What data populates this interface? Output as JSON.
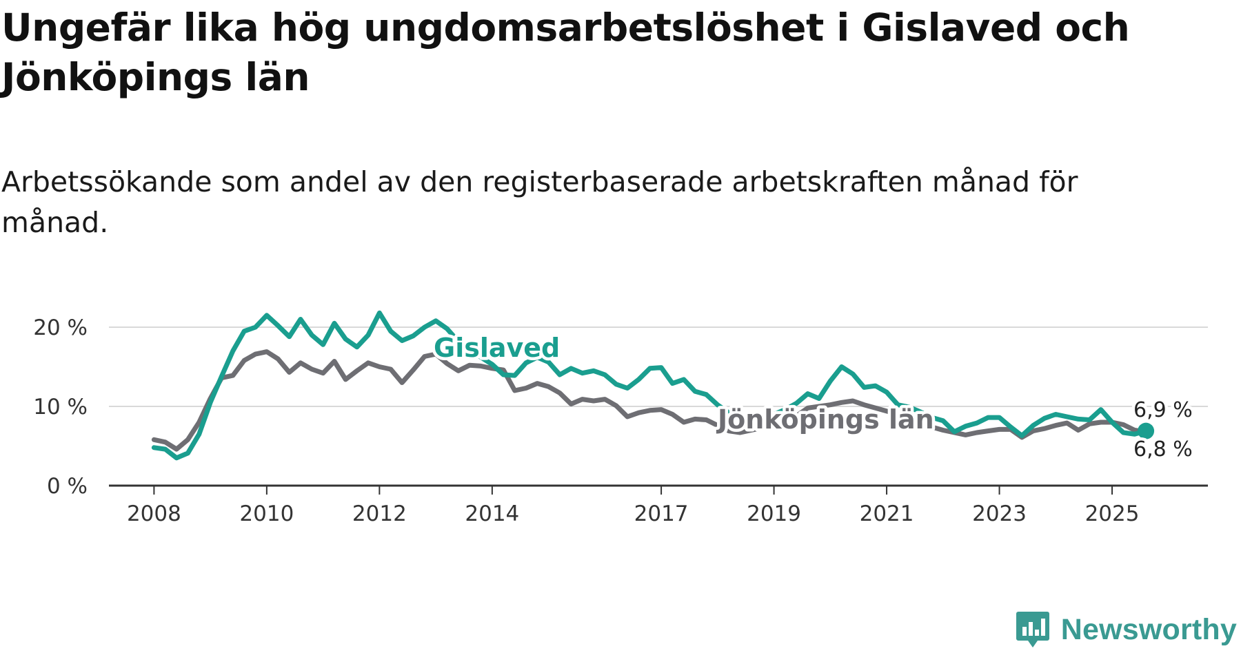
{
  "title": "Ungefär lika hög ungdomsarbetslöshet i Gislaved och Jönköpings län",
  "subtitle": "Arbetssökande som andel av den registerbaserade arbetskraften månad för månad.",
  "brand": "Newsworthy",
  "colors": {
    "gislaved": "#1a9e8f",
    "jonkoping": "#6e6e73",
    "grid": "#d9d9d9",
    "axis": "#333333",
    "brand": "#3a9a92"
  },
  "chart_data": {
    "type": "line",
    "title": "Ungefär lika hög ungdomsarbetslöshet i Gislaved och Jönköpings län",
    "subtitle": "Arbetssökande som andel av den registerbaserade arbetskraften månad för månad.",
    "xlabel": "",
    "ylabel": "",
    "ylim": [
      0,
      20
    ],
    "xlim": [
      2007.2,
      2026.7
    ],
    "yticks": [
      0,
      10,
      20
    ],
    "ytick_labels": [
      "0 %",
      "10 %",
      "20 %"
    ],
    "xticks": [
      2008,
      2010,
      2012,
      2014,
      2017,
      2019,
      2021,
      2023,
      2025
    ],
    "xtick_labels": [
      "2008",
      "2010",
      "2012",
      "2014",
      "2017",
      "2019",
      "2021",
      "2023",
      "2025"
    ],
    "grid": true,
    "series": [
      {
        "name": "Jönköpings län",
        "label": "Jönköpings län",
        "end_label": "6,8 %",
        "x": [
          2008.0,
          2008.2,
          2008.4,
          2008.6,
          2008.8,
          2009.0,
          2009.2,
          2009.4,
          2009.6,
          2009.8,
          2010.0,
          2010.2,
          2010.4,
          2010.6,
          2010.8,
          2011.0,
          2011.2,
          2011.4,
          2011.6,
          2011.8,
          2012.0,
          2012.2,
          2012.4,
          2012.6,
          2012.8,
          2013.0,
          2013.2,
          2013.4,
          2013.6,
          2013.8,
          2014.0,
          2014.2,
          2014.4,
          2014.6,
          2014.8,
          2015.0,
          2015.2,
          2015.4,
          2015.6,
          2015.8,
          2016.0,
          2016.2,
          2016.4,
          2016.6,
          2016.8,
          2017.0,
          2017.2,
          2017.4,
          2017.6,
          2017.8,
          2018.0,
          2018.2,
          2018.4,
          2018.6,
          2018.8,
          2019.0,
          2019.2,
          2019.4,
          2019.6,
          2019.8,
          2020.0,
          2020.2,
          2020.4,
          2020.6,
          2020.8,
          2021.0,
          2021.2,
          2021.4,
          2021.6,
          2021.8,
          2022.0,
          2022.2,
          2022.4,
          2022.6,
          2022.8,
          2023.0,
          2023.2,
          2023.4,
          2023.6,
          2023.8,
          2024.0,
          2024.2,
          2024.4,
          2024.6,
          2024.8,
          2025.0,
          2025.2,
          2025.4,
          2025.6
        ],
        "values": [
          5.8,
          5.5,
          4.6,
          5.8,
          8.0,
          11.0,
          13.6,
          13.9,
          15.8,
          16.6,
          16.9,
          16.0,
          14.3,
          15.5,
          14.7,
          14.2,
          15.7,
          13.4,
          14.5,
          15.5,
          15.0,
          14.7,
          13.0,
          14.6,
          16.3,
          16.6,
          15.4,
          14.5,
          15.2,
          15.1,
          14.8,
          14.6,
          12.0,
          12.3,
          12.9,
          12.5,
          11.7,
          10.3,
          10.9,
          10.7,
          10.9,
          10.1,
          8.7,
          9.2,
          9.5,
          9.6,
          9.0,
          8.0,
          8.4,
          8.3,
          7.6,
          6.9,
          6.7,
          7.0,
          7.3,
          7.4,
          7.8,
          8.8,
          9.8,
          10.0,
          10.2,
          10.5,
          10.7,
          10.2,
          9.8,
          9.4,
          9.0,
          8.4,
          7.8,
          7.4,
          7.0,
          6.7,
          6.4,
          6.7,
          6.9,
          7.1,
          7.1,
          6.1,
          6.9,
          7.2,
          7.6,
          7.9,
          7.0,
          7.8,
          8.0,
          8.0,
          7.7,
          7.0,
          6.8
        ]
      },
      {
        "name": "Gislaved",
        "label": "Gislaved",
        "end_label": "6,9 %",
        "x": [
          2008.0,
          2008.2,
          2008.4,
          2008.6,
          2008.8,
          2009.0,
          2009.2,
          2009.4,
          2009.6,
          2009.8,
          2010.0,
          2010.2,
          2010.4,
          2010.6,
          2010.8,
          2011.0,
          2011.2,
          2011.4,
          2011.6,
          2011.8,
          2012.0,
          2012.2,
          2012.4,
          2012.6,
          2012.8,
          2013.0,
          2013.2,
          2013.4,
          2013.6,
          2013.8,
          2014.0,
          2014.2,
          2014.4,
          2014.6,
          2014.8,
          2015.0,
          2015.2,
          2015.4,
          2015.6,
          2015.8,
          2016.0,
          2016.2,
          2016.4,
          2016.6,
          2016.8,
          2017.0,
          2017.2,
          2017.4,
          2017.6,
          2017.8,
          2018.0,
          2018.2,
          2018.4,
          2018.6,
          2018.8,
          2019.0,
          2019.2,
          2019.4,
          2019.6,
          2019.8,
          2020.0,
          2020.2,
          2020.4,
          2020.6,
          2020.8,
          2021.0,
          2021.2,
          2021.4,
          2021.6,
          2021.8,
          2022.0,
          2022.2,
          2022.4,
          2022.6,
          2022.8,
          2023.0,
          2023.2,
          2023.4,
          2023.6,
          2023.8,
          2024.0,
          2024.2,
          2024.4,
          2024.6,
          2024.8,
          2025.0,
          2025.2,
          2025.4,
          2025.6
        ],
        "values": [
          4.8,
          4.6,
          3.5,
          4.1,
          6.5,
          10.5,
          13.8,
          17.0,
          19.5,
          20.0,
          21.5,
          20.2,
          18.8,
          21.0,
          19.0,
          17.8,
          20.5,
          18.5,
          17.5,
          19.0,
          21.8,
          19.5,
          18.3,
          18.9,
          20.0,
          20.8,
          19.8,
          18.2,
          17.2,
          16.2,
          15.3,
          14.0,
          13.9,
          15.5,
          16.2,
          15.6,
          14.0,
          14.8,
          14.2,
          14.5,
          14.0,
          12.8,
          12.3,
          13.4,
          14.8,
          14.9,
          12.9,
          13.4,
          11.9,
          11.5,
          10.2,
          9.2,
          8.7,
          8.6,
          8.3,
          9.0,
          9.6,
          10.4,
          11.6,
          11.0,
          13.2,
          15.0,
          14.1,
          12.4,
          12.6,
          11.8,
          10.2,
          9.9,
          9.3,
          8.6,
          8.2,
          6.8,
          7.5,
          7.9,
          8.6,
          8.6,
          7.4,
          6.3,
          7.6,
          8.5,
          9.0,
          8.7,
          8.4,
          8.3,
          9.6,
          8.0,
          6.7,
          6.5,
          6.9
        ]
      }
    ]
  }
}
